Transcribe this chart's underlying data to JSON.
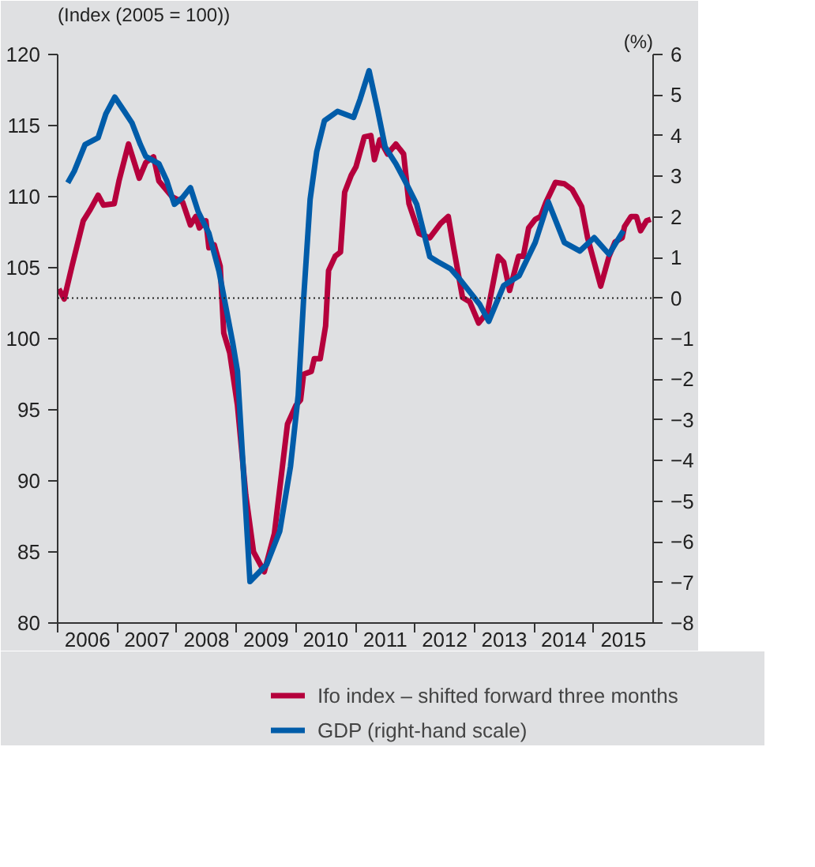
{
  "chart_data": {
    "type": "line",
    "ylabel": "(Index (2005 = 100))",
    "y2label": "(%)",
    "xlim": [
      2006,
      2016
    ],
    "xticks": [
      {
        "value": 2006,
        "label": null
      },
      {
        "value": 2007,
        "label": null
      },
      {
        "value": 2008,
        "label": null
      },
      {
        "value": 2009,
        "label": null
      },
      {
        "value": 2010,
        "label": null
      },
      {
        "value": 2011,
        "label": null
      },
      {
        "value": 2012,
        "label": null
      },
      {
        "value": 2013,
        "label": null
      },
      {
        "value": 2014,
        "label": null
      },
      {
        "value": 2015,
        "label": null
      },
      {
        "value": 2006.5,
        "label": "2006"
      },
      {
        "value": 2007.5,
        "label": "2007"
      },
      {
        "value": 2008.5,
        "label": "2008"
      },
      {
        "value": 2009.5,
        "label": "2009"
      },
      {
        "value": 2010.5,
        "label": "2010"
      },
      {
        "value": 2011.5,
        "label": "2011"
      },
      {
        "value": 2012.5,
        "label": "2012"
      },
      {
        "value": 2013.5,
        "label": "2013"
      },
      {
        "value": 2014.5,
        "label": "2014"
      },
      {
        "value": 2015.5,
        "label": "2015"
      }
    ],
    "ylim": [
      80,
      120
    ],
    "yticks": [
      80,
      85,
      90,
      95,
      100,
      105,
      110,
      115,
      120
    ],
    "y2lim": [
      -8,
      6
    ],
    "y2ticks": [
      -8,
      -7,
      -6,
      -5,
      -4,
      -3,
      -2,
      -1,
      0,
      1,
      2,
      3,
      4,
      5,
      6
    ],
    "grid": false,
    "legend": "bottom",
    "line_style": "solid",
    "marker": "none",
    "ref_lines": [
      {
        "axis": "y2",
        "value": 0,
        "label": null,
        "color": "#222222",
        "line_style": "dotted"
      }
    ],
    "series": [
      {
        "name": "Ifo index – shifted forward three months",
        "color": "#b5003c",
        "x": [
          2006.02,
          2006.11,
          2006.24,
          2006.43,
          2006.55,
          2006.68,
          2006.77,
          2006.95,
          2007.03,
          2007.19,
          2007.37,
          2007.48,
          2007.61,
          2007.7,
          2007.92,
          2008.1,
          2008.23,
          2008.32,
          2008.38,
          2008.49,
          2008.54,
          2008.63,
          2008.73,
          2008.79,
          2008.89,
          2009.02,
          2009.16,
          2009.29,
          2009.47,
          2009.64,
          2009.86,
          2010.0,
          2010.08,
          2010.13,
          2010.26,
          2010.31,
          2010.41,
          2010.5,
          2010.55,
          2010.66,
          2010.75,
          2010.82,
          2010.93,
          2011.01,
          2011.15,
          2011.26,
          2011.32,
          2011.41,
          2011.54,
          2011.68,
          2011.81,
          2011.9,
          2012.07,
          2012.25,
          2012.43,
          2012.56,
          2012.65,
          2012.8,
          2012.92,
          2013.07,
          2013.22,
          2013.4,
          2013.49,
          2013.59,
          2013.74,
          2013.82,
          2013.91,
          2014.02,
          2014.11,
          2014.2,
          2014.36,
          2014.51,
          2014.64,
          2014.8,
          2014.9,
          2015.01,
          2015.12,
          2015.26,
          2015.36,
          2015.48,
          2015.52,
          2015.63,
          2015.72,
          2015.79,
          2015.89,
          2015.96
        ],
        "values": [
          103.5,
          102.8,
          105.1,
          108.3,
          109.1,
          110.1,
          109.4,
          109.5,
          111.1,
          113.7,
          111.3,
          112.4,
          112.8,
          111.1,
          110.0,
          109.6,
          108.0,
          108.6,
          107.8,
          108.3,
          106.4,
          106.6,
          105.1,
          100.4,
          99.0,
          95.3,
          89.0,
          85.0,
          83.6,
          86.3,
          94.0,
          95.3,
          95.7,
          97.5,
          97.7,
          98.6,
          98.6,
          100.9,
          104.8,
          105.8,
          106.1,
          110.3,
          111.5,
          112.1,
          114.2,
          114.3,
          112.6,
          114.0,
          113.0,
          113.7,
          113.0,
          109.5,
          107.4,
          107.1,
          108.1,
          108.6,
          106.4,
          102.9,
          102.6,
          101.1,
          101.9,
          105.8,
          105.4,
          103.4,
          105.8,
          105.8,
          107.8,
          108.4,
          108.6,
          109.6,
          111.0,
          110.9,
          110.5,
          109.3,
          107.1,
          105.4,
          103.7,
          105.8,
          106.8,
          107.1,
          107.9,
          108.6,
          108.6,
          107.6,
          108.3,
          108.4
        ]
      },
      {
        "name": "GDP (right-hand scale)",
        "color": "#005ca9",
        "axis": "y2",
        "x": [
          2006.17,
          2006.28,
          2006.46,
          2006.68,
          2006.81,
          2006.96,
          2007.12,
          2007.25,
          2007.39,
          2007.48,
          2007.7,
          2007.83,
          2007.96,
          2008.1,
          2008.23,
          2008.36,
          2008.54,
          2008.71,
          2008.94,
          2009.02,
          2009.23,
          2009.51,
          2009.73,
          2009.91,
          2010.04,
          2010.13,
          2010.24,
          2010.35,
          2010.48,
          2010.7,
          2010.97,
          2011.08,
          2011.23,
          2011.37,
          2011.5,
          2011.68,
          2011.85,
          2012.03,
          2012.25,
          2012.38,
          2012.6,
          2012.74,
          2012.96,
          2013.09,
          2013.24,
          2013.49,
          2013.75,
          2014.02,
          2014.24,
          2014.51,
          2014.77,
          2015.01,
          2015.26,
          2015.5
        ],
        "values": [
          2.84,
          3.13,
          3.78,
          3.95,
          4.54,
          4.95,
          4.6,
          4.31,
          3.78,
          3.49,
          3.31,
          2.9,
          2.31,
          2.48,
          2.72,
          2.13,
          1.6,
          0.66,
          -1.1,
          -1.8,
          -6.98,
          -6.56,
          -5.74,
          -4.15,
          -2.39,
          -0.04,
          2.43,
          3.6,
          4.37,
          4.6,
          4.45,
          4.9,
          5.6,
          4.66,
          3.72,
          3.31,
          2.84,
          2.31,
          1.02,
          0.9,
          0.72,
          0.49,
          0.08,
          -0.16,
          -0.57,
          0.31,
          0.55,
          1.37,
          2.37,
          1.37,
          1.16,
          1.49,
          1.08,
          1.66
        ]
      }
    ]
  }
}
